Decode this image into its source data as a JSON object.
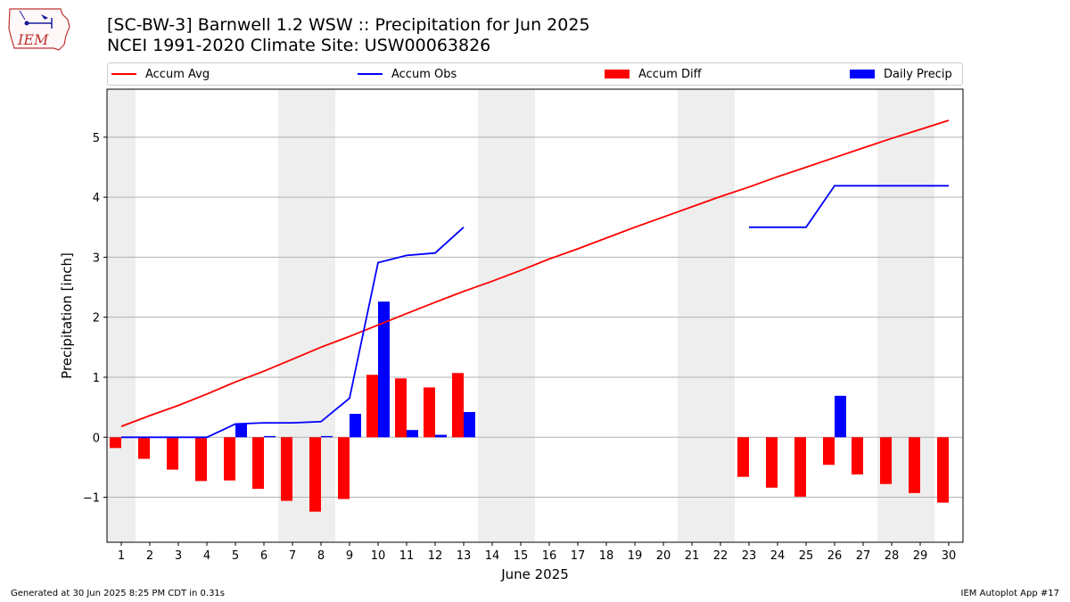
{
  "header": {
    "logo_text": "IEM",
    "title_line1": "[SC-BW-3] Barnwell 1.2 WSW :: Precipitation for Jun 2025",
    "title_line2": "NCEI 1991-2020 Climate Site: USW00063826"
  },
  "footer": {
    "left": "Generated at 30 Jun 2025 8:25 PM CDT in 0.31s",
    "right": "IEM Autoplot App #17"
  },
  "chart_data": {
    "type": "bar",
    "xlabel": "June 2025",
    "ylabel": "Precipitation [inch]",
    "xlim": [
      0.5,
      30.5
    ],
    "ylim": [
      -1.75,
      5.8
    ],
    "x_ticks": [
      1,
      2,
      3,
      4,
      5,
      6,
      7,
      8,
      9,
      10,
      11,
      12,
      13,
      14,
      15,
      16,
      17,
      18,
      19,
      20,
      21,
      22,
      23,
      24,
      25,
      26,
      27,
      28,
      29,
      30
    ],
    "y_ticks": [
      -1,
      0,
      1,
      2,
      3,
      4,
      5
    ],
    "y_tick_labels": [
      "−1",
      "0",
      "1",
      "2",
      "3",
      "4",
      "5"
    ],
    "grid": "horizontal",
    "weekend_shading": [
      [
        0.5,
        1.5
      ],
      [
        6.5,
        8.5
      ],
      [
        13.5,
        15.5
      ],
      [
        20.5,
        22.5
      ],
      [
        27.5,
        29.5
      ]
    ],
    "legend": {
      "placement": "top",
      "items": [
        {
          "label": "Accum Avg",
          "kind": "line",
          "color": "#ff0000"
        },
        {
          "label": "Accum Obs",
          "kind": "line",
          "color": "#0000ff"
        },
        {
          "label": "Accum Diff",
          "kind": "patch",
          "color": "#ff0000"
        },
        {
          "label": "Daily Precip",
          "kind": "patch",
          "color": "#0000ff"
        }
      ]
    },
    "series": [
      {
        "name": "Accum Avg",
        "kind": "line",
        "color": "#ff0000",
        "x": [
          1,
          2,
          3,
          4,
          5,
          6,
          7,
          8,
          9,
          10,
          11,
          12,
          13,
          14,
          15,
          16,
          17,
          18,
          19,
          20,
          21,
          22,
          23,
          24,
          25,
          26,
          27,
          28,
          29,
          30
        ],
        "values": [
          0.18,
          0.36,
          0.53,
          0.72,
          0.92,
          1.1,
          1.3,
          1.5,
          1.68,
          1.87,
          2.06,
          2.25,
          2.43,
          2.6,
          2.78,
          2.97,
          3.14,
          3.32,
          3.5,
          3.67,
          3.84,
          4.01,
          4.17,
          4.34,
          4.5,
          4.66,
          4.82,
          4.98,
          5.13,
          5.28
        ]
      },
      {
        "name": "Accum Obs",
        "kind": "line",
        "color": "#0000ff",
        "x": [
          1,
          2,
          3,
          4,
          5,
          6,
          7,
          8,
          9,
          10,
          11,
          12,
          13,
          14,
          15,
          16,
          17,
          18,
          19,
          20,
          21,
          22,
          23,
          24,
          25,
          26,
          27,
          28,
          29,
          30
        ],
        "values": [
          0.0,
          0.0,
          0.0,
          0.0,
          0.22,
          0.24,
          0.24,
          0.26,
          0.65,
          2.91,
          3.03,
          3.07,
          3.5,
          null,
          null,
          null,
          null,
          null,
          null,
          null,
          null,
          null,
          3.5,
          3.5,
          3.5,
          4.19,
          4.19,
          4.19,
          4.19,
          4.19
        ]
      },
      {
        "name": "Accum Diff",
        "kind": "bar",
        "color": "#ff0000",
        "x": [
          1,
          2,
          3,
          4,
          5,
          6,
          7,
          8,
          9,
          10,
          11,
          12,
          13,
          23,
          24,
          25,
          26,
          27,
          28,
          29,
          30
        ],
        "values": [
          -0.18,
          -0.36,
          -0.54,
          -0.73,
          -0.72,
          -0.86,
          -1.06,
          -1.24,
          -1.03,
          1.04,
          0.98,
          0.83,
          1.07,
          -0.66,
          -0.84,
          -0.99,
          -0.46,
          -0.62,
          -0.78,
          -0.93,
          -1.09
        ]
      },
      {
        "name": "Daily Precip",
        "kind": "bar",
        "color": "#0000ff",
        "x": [
          1,
          2,
          3,
          4,
          5,
          6,
          7,
          8,
          9,
          10,
          11,
          12,
          13,
          23,
          24,
          25,
          26,
          27,
          28,
          29,
          30
        ],
        "values": [
          0,
          0,
          0,
          0,
          0.22,
          0.02,
          0,
          0.02,
          0.39,
          2.26,
          0.12,
          0.04,
          0.42,
          0,
          0,
          0,
          0.69,
          0,
          0,
          0,
          0
        ]
      }
    ]
  }
}
